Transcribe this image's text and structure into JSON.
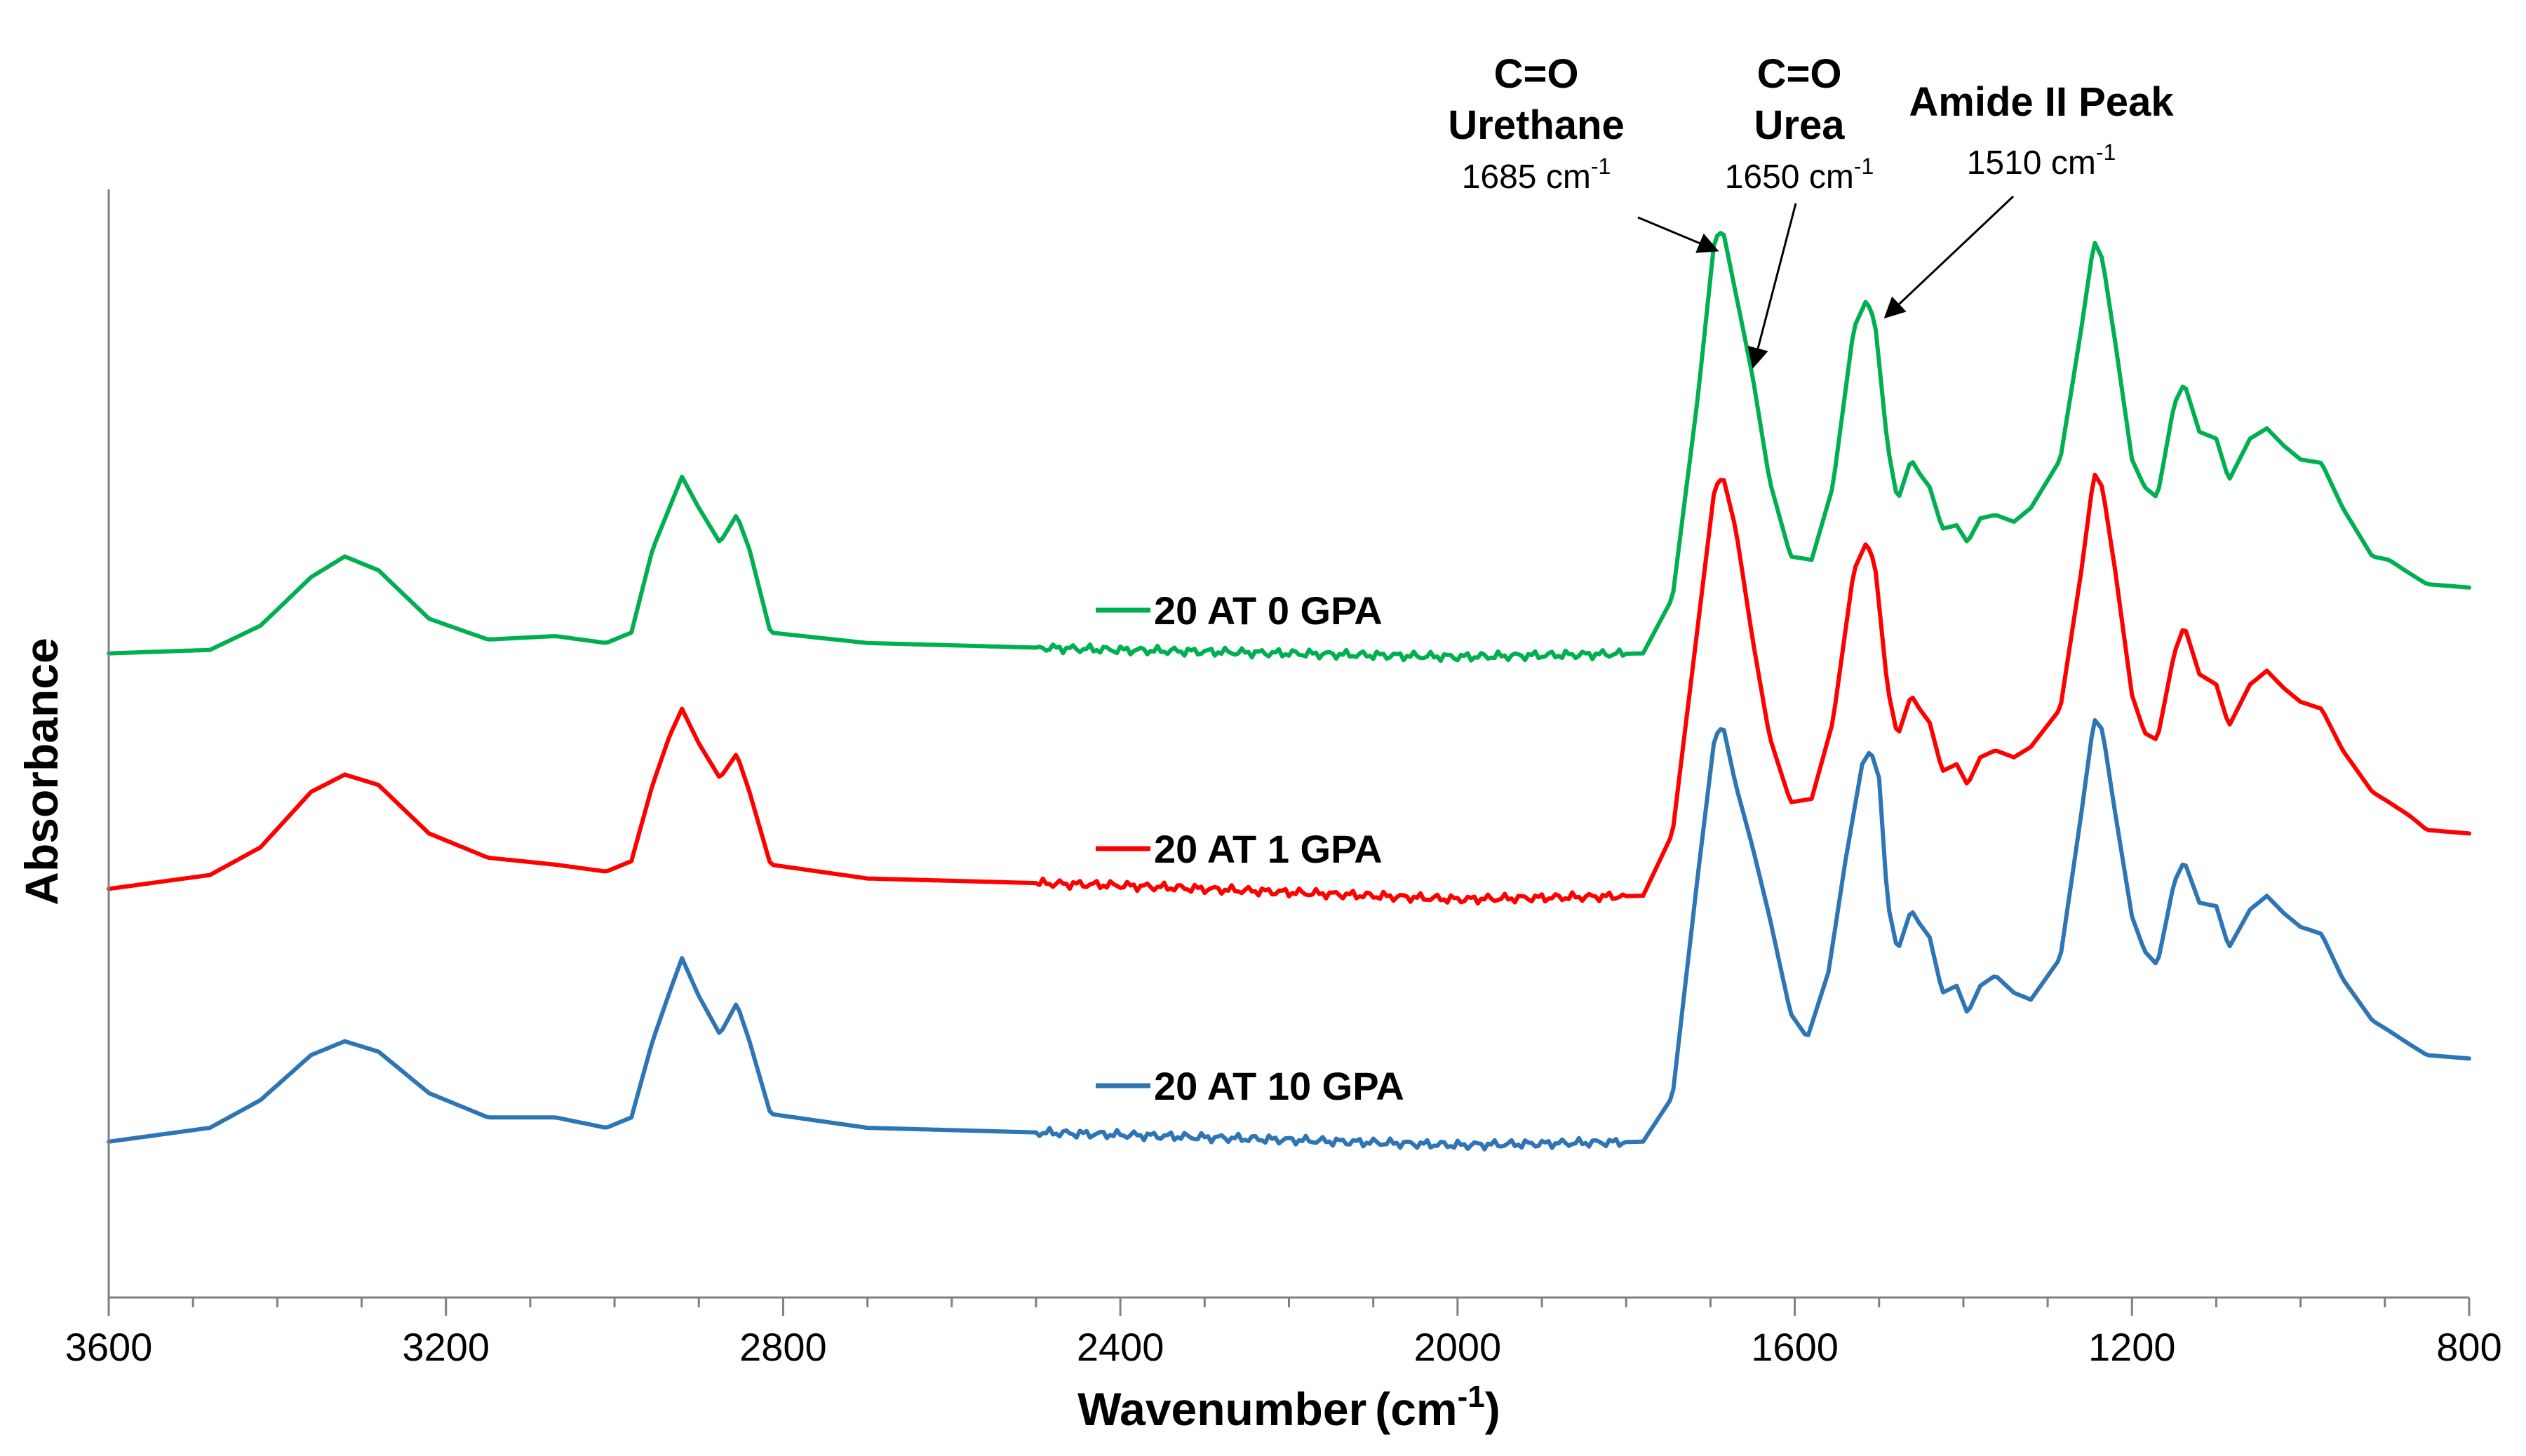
{
  "chart_data": {
    "type": "line",
    "xlabel": "Wavenumber (cm-1)",
    "xlabel_main": "Wavenumber",
    "xlabel_unit_open": "(cm",
    "xlabel_unit_sup": "-1",
    "xlabel_unit_close": ")",
    "ylabel": "Absorbance",
    "xlim": [
      3600,
      800
    ],
    "x_reversed": true,
    "xticks": [
      3600,
      3200,
      2800,
      2400,
      2000,
      1600,
      1200,
      800
    ],
    "yticks_shown": false,
    "ylim": [
      -0.05,
      1.55
    ],
    "series": [
      {
        "name": "20 AT 0 GPA",
        "color": "#00b050",
        "points": [
          [
            3600,
            0.88
          ],
          [
            3480,
            0.885
          ],
          [
            3420,
            0.92
          ],
          [
            3360,
            0.99
          ],
          [
            3320,
            1.02
          ],
          [
            3280,
            1.0
          ],
          [
            3220,
            0.93
          ],
          [
            3150,
            0.9
          ],
          [
            3070,
            0.905
          ],
          [
            3010,
            0.895
          ],
          [
            2980,
            0.91
          ],
          [
            2955,
            1.03
          ],
          [
            2935,
            1.09
          ],
          [
            2920,
            1.135
          ],
          [
            2900,
            1.09
          ],
          [
            2875,
            1.04
          ],
          [
            2855,
            1.08
          ],
          [
            2840,
            1.03
          ],
          [
            2815,
            0.91
          ],
          [
            2700,
            0.895
          ],
          [
            2400,
            0.885
          ],
          [
            2000,
            0.875
          ],
          [
            1780,
            0.88
          ],
          [
            1745,
            0.96
          ],
          [
            1715,
            1.25
          ],
          [
            1695,
            1.48
          ],
          [
            1685,
            1.49
          ],
          [
            1670,
            1.4
          ],
          [
            1650,
            1.28
          ],
          [
            1630,
            1.13
          ],
          [
            1605,
            1.02
          ],
          [
            1580,
            1.015
          ],
          [
            1555,
            1.12
          ],
          [
            1530,
            1.35
          ],
          [
            1515,
            1.39
          ],
          [
            1505,
            1.36
          ],
          [
            1490,
            1.18
          ],
          [
            1478,
            1.1
          ],
          [
            1462,
            1.16
          ],
          [
            1452,
            1.14
          ],
          [
            1440,
            1.12
          ],
          [
            1425,
            1.06
          ],
          [
            1408,
            1.065
          ],
          [
            1395,
            1.04
          ],
          [
            1380,
            1.075
          ],
          [
            1362,
            1.08
          ],
          [
            1340,
            1.07
          ],
          [
            1320,
            1.09
          ],
          [
            1285,
            1.16
          ],
          [
            1260,
            1.35
          ],
          [
            1245,
            1.475
          ],
          [
            1235,
            1.45
          ],
          [
            1220,
            1.33
          ],
          [
            1200,
            1.16
          ],
          [
            1185,
            1.12
          ],
          [
            1170,
            1.105
          ],
          [
            1150,
            1.24
          ],
          [
            1138,
            1.27
          ],
          [
            1120,
            1.2
          ],
          [
            1100,
            1.19
          ],
          [
            1085,
            1.13
          ],
          [
            1060,
            1.19
          ],
          [
            1040,
            1.205
          ],
          [
            1020,
            1.18
          ],
          [
            1000,
            1.16
          ],
          [
            975,
            1.155
          ],
          [
            950,
            1.09
          ],
          [
            915,
            1.02
          ],
          [
            895,
            1.015
          ],
          [
            870,
            0.995
          ],
          [
            850,
            0.98
          ],
          [
            800,
            0.975
          ]
        ]
      },
      {
        "name": "20 AT 1 GPA",
        "color": "#ff0000",
        "points": [
          [
            3600,
            0.54
          ],
          [
            3480,
            0.56
          ],
          [
            3420,
            0.6
          ],
          [
            3360,
            0.68
          ],
          [
            3320,
            0.705
          ],
          [
            3280,
            0.69
          ],
          [
            3220,
            0.62
          ],
          [
            3150,
            0.585
          ],
          [
            3070,
            0.575
          ],
          [
            3010,
            0.565
          ],
          [
            2980,
            0.58
          ],
          [
            2955,
            0.69
          ],
          [
            2935,
            0.76
          ],
          [
            2920,
            0.8
          ],
          [
            2900,
            0.75
          ],
          [
            2875,
            0.7
          ],
          [
            2855,
            0.735
          ],
          [
            2840,
            0.68
          ],
          [
            2815,
            0.575
          ],
          [
            2700,
            0.555
          ],
          [
            2400,
            0.545
          ],
          [
            2000,
            0.525
          ],
          [
            1780,
            0.53
          ],
          [
            1745,
            0.62
          ],
          [
            1715,
            0.92
          ],
          [
            1695,
            1.12
          ],
          [
            1685,
            1.135
          ],
          [
            1670,
            1.06
          ],
          [
            1650,
            0.9
          ],
          [
            1630,
            0.76
          ],
          [
            1605,
            0.665
          ],
          [
            1580,
            0.67
          ],
          [
            1555,
            0.78
          ],
          [
            1530,
            1.0
          ],
          [
            1515,
            1.04
          ],
          [
            1505,
            1.01
          ],
          [
            1490,
            0.83
          ],
          [
            1478,
            0.76
          ],
          [
            1462,
            0.82
          ],
          [
            1452,
            0.8
          ],
          [
            1440,
            0.78
          ],
          [
            1425,
            0.71
          ],
          [
            1408,
            0.72
          ],
          [
            1395,
            0.69
          ],
          [
            1380,
            0.73
          ],
          [
            1362,
            0.74
          ],
          [
            1340,
            0.73
          ],
          [
            1320,
            0.745
          ],
          [
            1285,
            0.8
          ],
          [
            1260,
            1.0
          ],
          [
            1245,
            1.14
          ],
          [
            1235,
            1.12
          ],
          [
            1220,
            1.0
          ],
          [
            1200,
            0.82
          ],
          [
            1185,
            0.765
          ],
          [
            1170,
            0.755
          ],
          [
            1150,
            0.88
          ],
          [
            1138,
            0.92
          ],
          [
            1120,
            0.85
          ],
          [
            1100,
            0.835
          ],
          [
            1085,
            0.775
          ],
          [
            1060,
            0.835
          ],
          [
            1040,
            0.855
          ],
          [
            1020,
            0.83
          ],
          [
            1000,
            0.81
          ],
          [
            975,
            0.8
          ],
          [
            950,
            0.74
          ],
          [
            915,
            0.68
          ],
          [
            895,
            0.665
          ],
          [
            870,
            0.645
          ],
          [
            850,
            0.625
          ],
          [
            800,
            0.62
          ]
        ]
      },
      {
        "name": "20 AT 10 GPA",
        "color": "#2e75b6",
        "points": [
          [
            3600,
            0.175
          ],
          [
            3480,
            0.195
          ],
          [
            3420,
            0.235
          ],
          [
            3360,
            0.3
          ],
          [
            3320,
            0.32
          ],
          [
            3280,
            0.305
          ],
          [
            3220,
            0.245
          ],
          [
            3150,
            0.21
          ],
          [
            3070,
            0.21
          ],
          [
            3010,
            0.195
          ],
          [
            2980,
            0.21
          ],
          [
            2955,
            0.32
          ],
          [
            2935,
            0.39
          ],
          [
            2920,
            0.44
          ],
          [
            2900,
            0.385
          ],
          [
            2875,
            0.33
          ],
          [
            2855,
            0.375
          ],
          [
            2840,
            0.32
          ],
          [
            2815,
            0.215
          ],
          [
            2700,
            0.195
          ],
          [
            2400,
            0.185
          ],
          [
            2000,
            0.17
          ],
          [
            1780,
            0.175
          ],
          [
            1745,
            0.24
          ],
          [
            1715,
            0.56
          ],
          [
            1695,
            0.76
          ],
          [
            1685,
            0.775
          ],
          [
            1670,
            0.69
          ],
          [
            1650,
            0.6
          ],
          [
            1630,
            0.5
          ],
          [
            1605,
            0.36
          ],
          [
            1585,
            0.325
          ],
          [
            1560,
            0.42
          ],
          [
            1540,
            0.58
          ],
          [
            1520,
            0.72
          ],
          [
            1510,
            0.74
          ],
          [
            1500,
            0.7
          ],
          [
            1490,
            0.52
          ],
          [
            1478,
            0.45
          ],
          [
            1462,
            0.51
          ],
          [
            1452,
            0.49
          ],
          [
            1440,
            0.47
          ],
          [
            1425,
            0.39
          ],
          [
            1408,
            0.4
          ],
          [
            1395,
            0.36
          ],
          [
            1380,
            0.4
          ],
          [
            1362,
            0.415
          ],
          [
            1340,
            0.39
          ],
          [
            1320,
            0.38
          ],
          [
            1285,
            0.44
          ],
          [
            1260,
            0.65
          ],
          [
            1245,
            0.785
          ],
          [
            1235,
            0.77
          ],
          [
            1220,
            0.65
          ],
          [
            1200,
            0.5
          ],
          [
            1185,
            0.45
          ],
          [
            1170,
            0.43
          ],
          [
            1150,
            0.55
          ],
          [
            1138,
            0.58
          ],
          [
            1120,
            0.52
          ],
          [
            1100,
            0.515
          ],
          [
            1085,
            0.455
          ],
          [
            1060,
            0.51
          ],
          [
            1040,
            0.53
          ],
          [
            1020,
            0.505
          ],
          [
            1000,
            0.485
          ],
          [
            975,
            0.475
          ],
          [
            950,
            0.41
          ],
          [
            915,
            0.35
          ],
          [
            895,
            0.335
          ],
          [
            870,
            0.315
          ],
          [
            850,
            0.3
          ],
          [
            800,
            0.295
          ]
        ]
      }
    ],
    "annotations": [
      {
        "line1": "C=O",
        "line2": "Urethane",
        "value": "1685",
        "unit": "cm",
        "sup": "-1",
        "target_x": 1685,
        "target_series": "20 AT 0 GPA"
      },
      {
        "line1": "C=O",
        "line2": "Urea",
        "value": "1650",
        "unit": "cm",
        "sup": "-1",
        "target_x": 1650,
        "target_series": "20 AT 0 GPA"
      },
      {
        "line1": "Amide II Peak",
        "line2": "",
        "value": "1510",
        "unit": "cm",
        "sup": "-1",
        "target_x": 1510,
        "target_series": "20 AT 0 GPA"
      }
    ],
    "legend_placement": "inline, left of each trace near 2400"
  }
}
